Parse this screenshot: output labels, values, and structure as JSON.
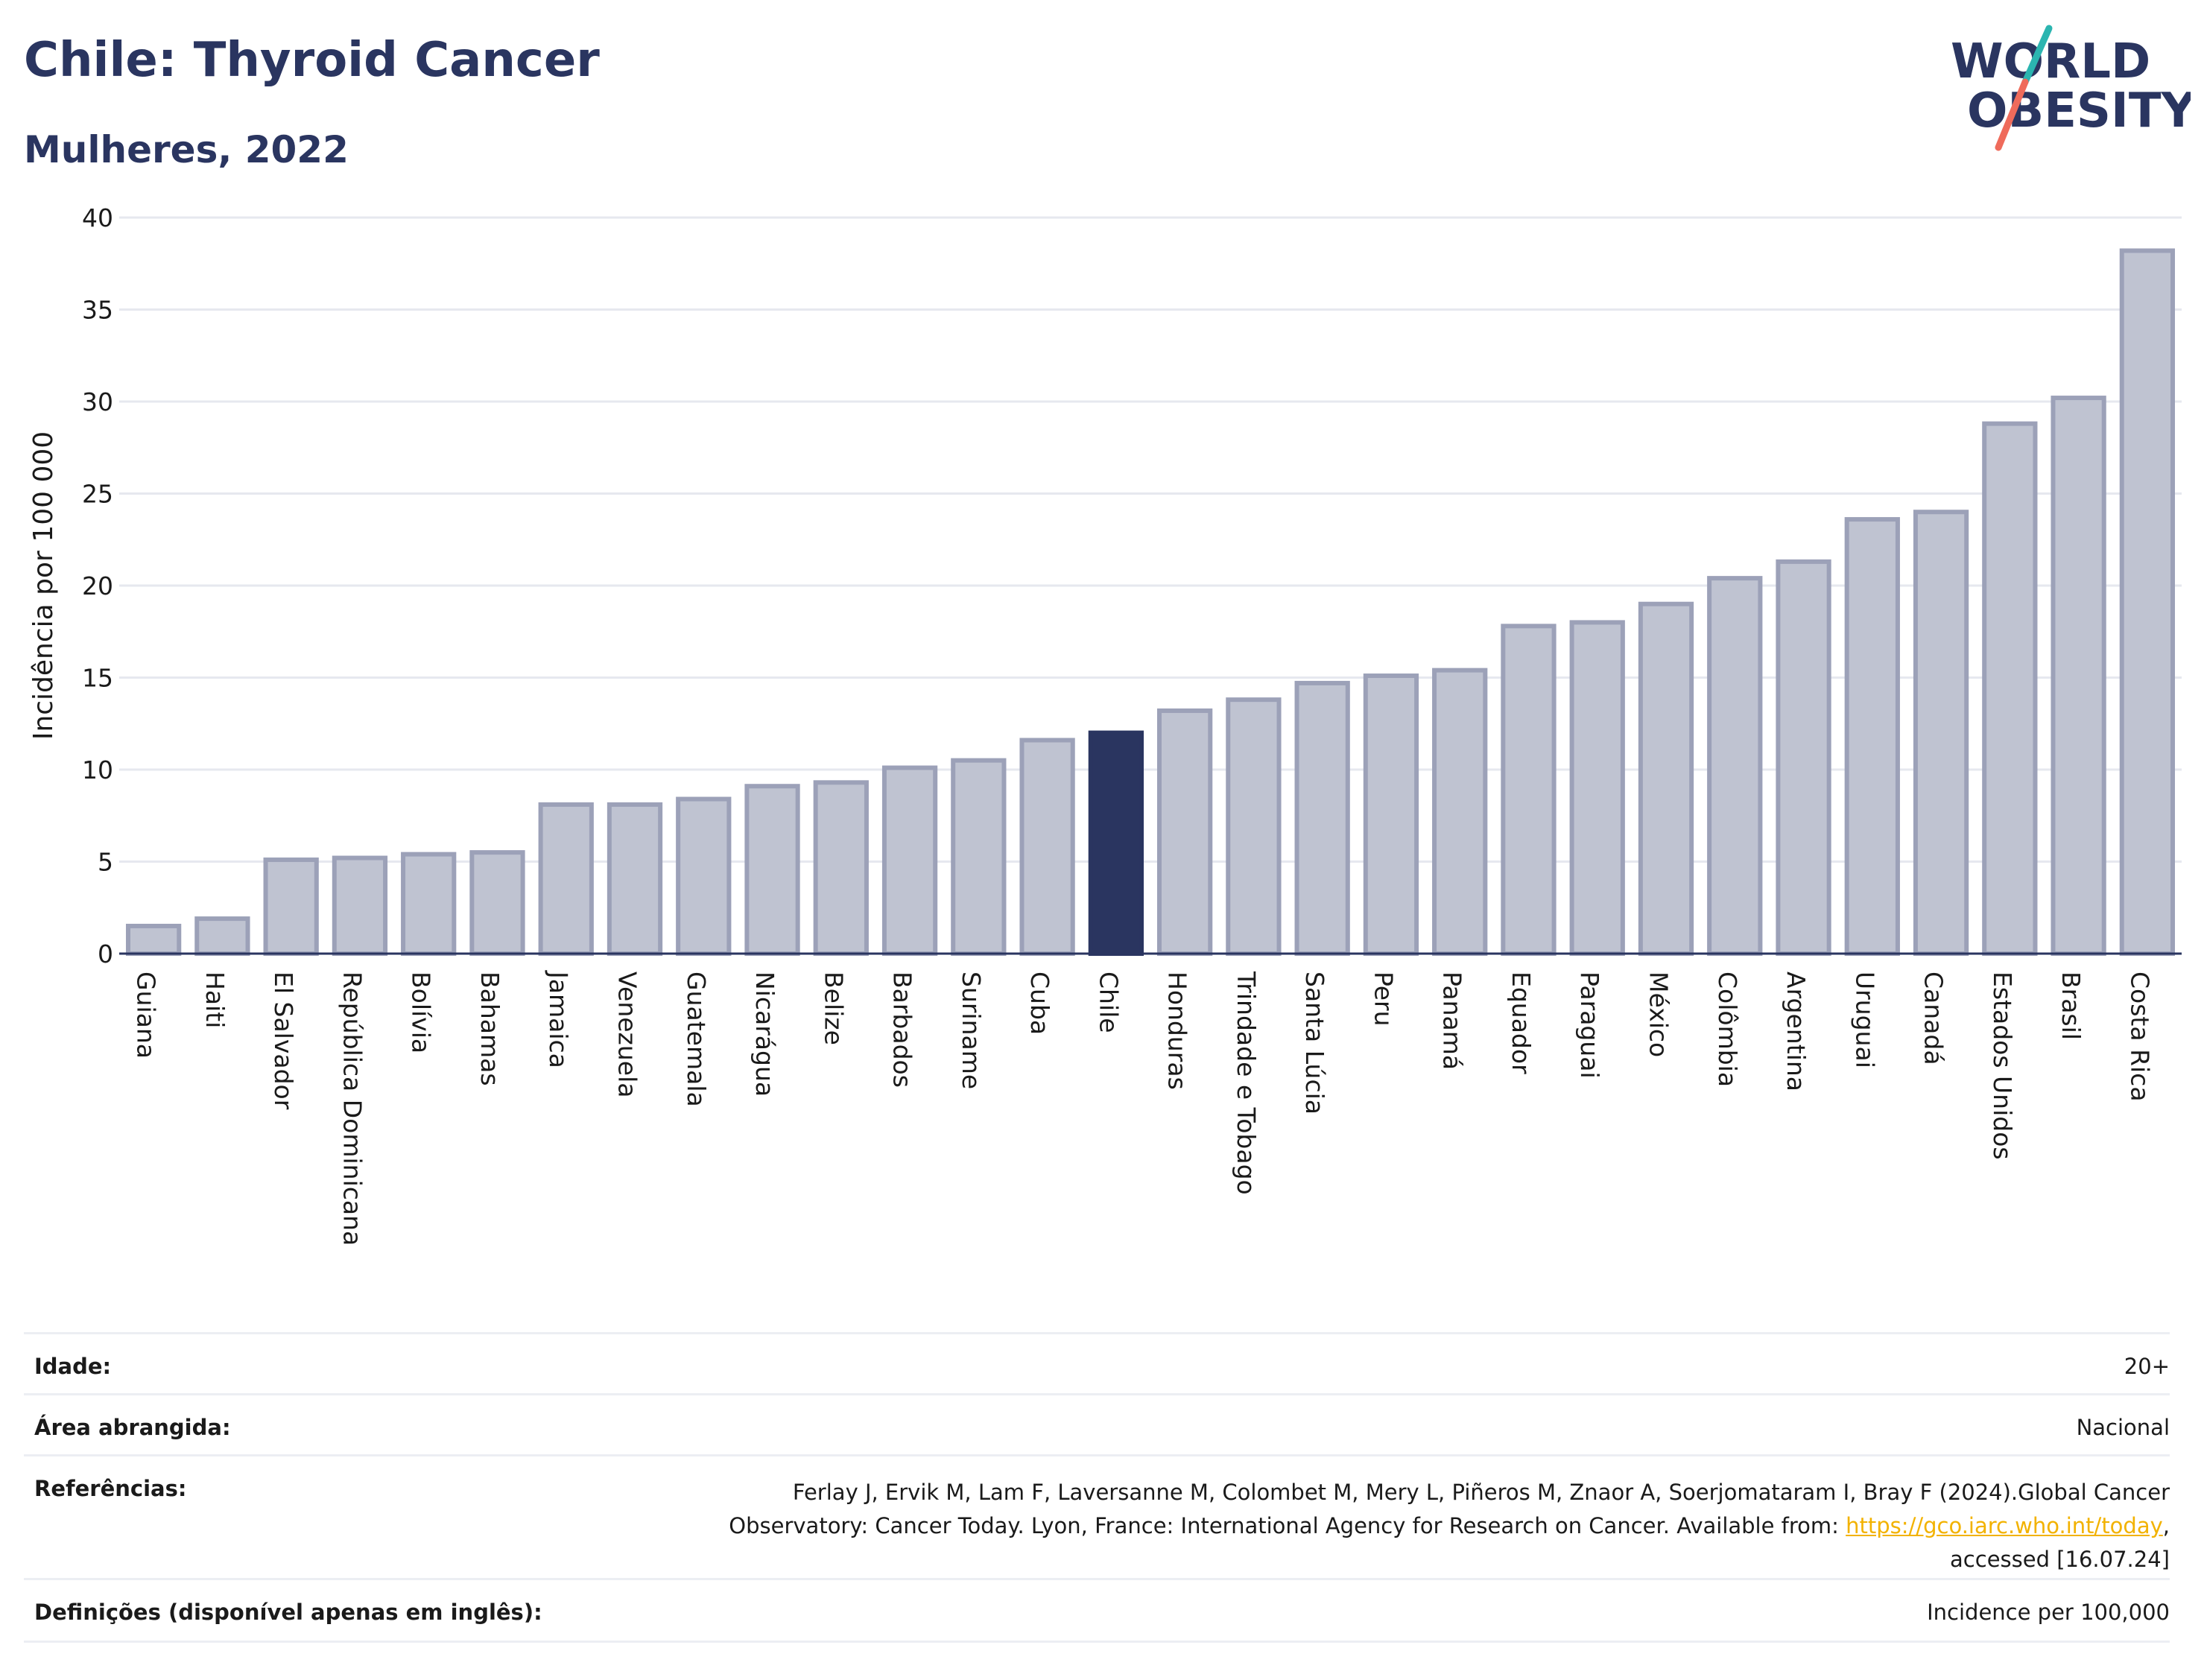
{
  "header": {
    "title": "Chile: Thyroid Cancer",
    "subtitle": "Mulheres, 2022",
    "logo_line1": "WORLD",
    "logo_line2": "OBESITY"
  },
  "colors": {
    "accent": "#2a3560",
    "bar_fill": "#bfc3d1",
    "bar_stroke": "#9ca1b8",
    "link": "#f2b200"
  },
  "chart_data": {
    "type": "bar",
    "title": "Chile: Thyroid Cancer",
    "subtitle": "Mulheres, 2022",
    "xlabel": "",
    "ylabel": "Incidência por 100 000",
    "ylim": [
      0,
      40
    ],
    "yticks": [
      0,
      5,
      10,
      15,
      20,
      25,
      30,
      35,
      40
    ],
    "grid": true,
    "highlight": "Chile",
    "categories": [
      "Guiana",
      "Haiti",
      "El Salvador",
      "República Dominicana",
      "Bolívia",
      "Bahamas",
      "Jamaica",
      "Venezuela",
      "Guatemala",
      "Nicarágua",
      "Belize",
      "Barbados",
      "Suriname",
      "Cuba",
      "Chile",
      "Honduras",
      "Trindade e Tobago",
      "Santa Lúcia",
      "Peru",
      "Panamá",
      "Equador",
      "Paraguai",
      "México",
      "Colômbia",
      "Argentina",
      "Uruguai",
      "Canadá",
      "Estados Unidos",
      "Brasil",
      "Costa Rica"
    ],
    "values": [
      1.5,
      1.9,
      5.1,
      5.2,
      5.4,
      5.5,
      8.1,
      8.1,
      8.4,
      9.1,
      9.3,
      10.1,
      10.5,
      11.6,
      12.0,
      13.2,
      13.8,
      14.7,
      15.1,
      15.4,
      17.8,
      18.0,
      19.0,
      20.4,
      21.3,
      23.6,
      24.0,
      28.8,
      30.2,
      38.2
    ]
  },
  "meta": {
    "age_label": "Idade:",
    "age_value": "20+",
    "area_label": "Área abrangida:",
    "area_value": "Nacional",
    "refs_label": "Referências:",
    "refs_line1": "Ferlay J, Ervik M, Lam F, Laversanne M, Colombet M, Mery L, Piñeros M, Znaor A, Soerjomataram I, Bray F (2024).Global Cancer",
    "refs_line2_pre": "Observatory: Cancer Today. Lyon, France: International Agency for Research on Cancer. Available from: ",
    "refs_link": "https://gco.iarc.who.int/today",
    "refs_line2_post": ",",
    "refs_line3": "accessed [16.07.24]",
    "defs_label": "Definições (disponível apenas em inglês):",
    "defs_value": "Incidence per 100,000"
  }
}
